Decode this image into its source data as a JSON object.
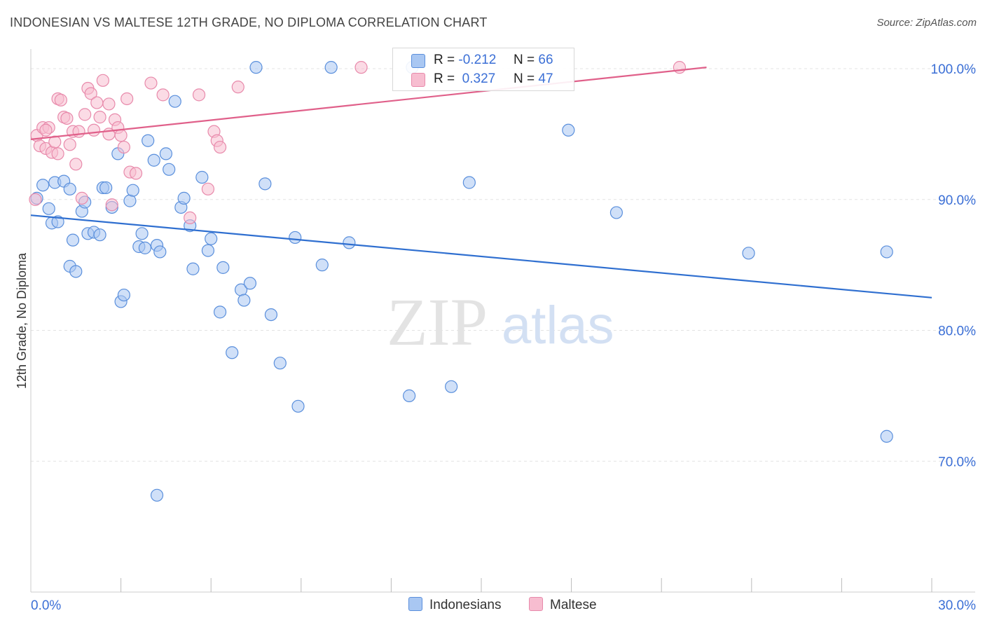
{
  "header": {
    "title": "INDONESIAN VS MALTESE 12TH GRADE, NO DIPLOMA CORRELATION CHART",
    "source": "Source: ZipAtlas.com"
  },
  "legend": {
    "r_label": "R =",
    "n_label": "N =",
    "series": [
      {
        "r": "-0.212",
        "n": "66"
      },
      {
        "r": " 0.327",
        "n": "47"
      }
    ]
  },
  "bottom_legend": [
    "Indonesians",
    "Maltese"
  ],
  "watermark": {
    "zip": "ZIP",
    "atlas": "atlas"
  },
  "colors": {
    "blue_fill": "#a9c7f2",
    "blue_stroke": "#5a8fdc",
    "blue_line": "#2f6fd0",
    "pink_fill": "#f7bdd0",
    "pink_stroke": "#e88aab",
    "pink_line": "#e0608a",
    "grid": "#e3e3e3",
    "tick_label": "#3b6fd6"
  },
  "chart_data": {
    "type": "scatter",
    "title": "INDONESIAN VS MALTESE 12TH GRADE, NO DIPLOMA CORRELATION CHART",
    "xlabel": "",
    "ylabel": "12th Grade, No Diploma",
    "xlim": [
      0,
      30
    ],
    "ylim": [
      60,
      101.5
    ],
    "x_ticks": [
      "0.0%",
      "30.0%"
    ],
    "y_ticks": [
      {
        "value": 100,
        "label": "100.0%"
      },
      {
        "value": 90,
        "label": "90.0%"
      },
      {
        "value": 80,
        "label": "80.0%"
      },
      {
        "value": 70,
        "label": "70.0%"
      }
    ],
    "grid": true,
    "legend_position": "top-center",
    "series": [
      {
        "name": "Indonesians",
        "color": "#5a8fdc",
        "points": [
          [
            0.2,
            90.1
          ],
          [
            0.4,
            91.1
          ],
          [
            0.6,
            89.3
          ],
          [
            0.8,
            91.3
          ],
          [
            0.7,
            88.2
          ],
          [
            0.9,
            88.3
          ],
          [
            1.1,
            91.4
          ],
          [
            1.3,
            84.9
          ],
          [
            1.4,
            86.9
          ],
          [
            1.5,
            84.5
          ],
          [
            1.7,
            89.1
          ],
          [
            1.8,
            89.8
          ],
          [
            1.9,
            87.4
          ],
          [
            2.1,
            87.5
          ],
          [
            2.3,
            87.3
          ],
          [
            2.4,
            90.9
          ],
          [
            2.5,
            90.9
          ],
          [
            2.7,
            89.4
          ],
          [
            2.9,
            93.5
          ],
          [
            3.0,
            82.2
          ],
          [
            3.1,
            82.7
          ],
          [
            3.3,
            89.9
          ],
          [
            3.4,
            90.7
          ],
          [
            3.6,
            86.4
          ],
          [
            3.7,
            87.4
          ],
          [
            3.8,
            86.3
          ],
          [
            3.9,
            94.5
          ],
          [
            4.1,
            93.0
          ],
          [
            4.2,
            86.5
          ],
          [
            4.3,
            86.0
          ],
          [
            4.5,
            93.5
          ],
          [
            4.6,
            92.3
          ],
          [
            4.8,
            97.5
          ],
          [
            5.0,
            89.4
          ],
          [
            5.1,
            90.1
          ],
          [
            5.3,
            88.0
          ],
          [
            5.4,
            84.7
          ],
          [
            5.7,
            91.7
          ],
          [
            5.9,
            86.1
          ],
          [
            6.0,
            87.0
          ],
          [
            6.3,
            81.4
          ],
          [
            6.4,
            84.8
          ],
          [
            6.7,
            78.3
          ],
          [
            7.0,
            83.1
          ],
          [
            7.1,
            82.3
          ],
          [
            7.3,
            83.6
          ],
          [
            7.5,
            100.1
          ],
          [
            7.8,
            91.2
          ],
          [
            8.0,
            81.2
          ],
          [
            8.3,
            77.5
          ],
          [
            8.8,
            87.1
          ],
          [
            8.9,
            74.2
          ],
          [
            9.7,
            85.0
          ],
          [
            10.0,
            100.1
          ],
          [
            10.6,
            86.7
          ],
          [
            12.6,
            75.0
          ],
          [
            14.0,
            75.7
          ],
          [
            14.6,
            91.3
          ],
          [
            17.9,
            95.3
          ],
          [
            19.5,
            89.0
          ],
          [
            23.9,
            85.9
          ],
          [
            28.5,
            86.0
          ],
          [
            28.5,
            71.9
          ],
          [
            4.2,
            67.4
          ],
          [
            12.7,
            100.1
          ],
          [
            1.3,
            90.8
          ]
        ],
        "trend": {
          "x": [
            0,
            30
          ],
          "y": [
            88.8,
            82.5
          ]
        }
      },
      {
        "name": "Maltese",
        "color": "#e88aab",
        "points": [
          [
            0.2,
            94.9
          ],
          [
            0.3,
            94.1
          ],
          [
            0.4,
            95.5
          ],
          [
            0.5,
            93.9
          ],
          [
            0.6,
            95.5
          ],
          [
            0.7,
            93.6
          ],
          [
            0.8,
            94.4
          ],
          [
            0.9,
            97.7
          ],
          [
            1.0,
            97.6
          ],
          [
            1.1,
            96.3
          ],
          [
            1.2,
            96.2
          ],
          [
            1.3,
            94.2
          ],
          [
            1.4,
            95.2
          ],
          [
            1.5,
            92.7
          ],
          [
            1.7,
            90.1
          ],
          [
            1.8,
            96.5
          ],
          [
            1.9,
            98.5
          ],
          [
            2.0,
            98.1
          ],
          [
            2.1,
            95.3
          ],
          [
            2.2,
            97.4
          ],
          [
            2.3,
            96.3
          ],
          [
            2.4,
            99.1
          ],
          [
            2.6,
            95.0
          ],
          [
            2.7,
            89.6
          ],
          [
            2.8,
            96.1
          ],
          [
            2.9,
            95.5
          ],
          [
            3.0,
            94.9
          ],
          [
            3.1,
            94.0
          ],
          [
            3.2,
            97.7
          ],
          [
            3.3,
            92.1
          ],
          [
            3.5,
            92.0
          ],
          [
            4.0,
            98.9
          ],
          [
            4.4,
            98.0
          ],
          [
            5.3,
            88.6
          ],
          [
            5.6,
            98.0
          ],
          [
            5.9,
            90.8
          ],
          [
            6.1,
            95.2
          ],
          [
            6.2,
            94.5
          ],
          [
            6.3,
            94.0
          ],
          [
            6.9,
            98.6
          ],
          [
            11.0,
            100.1
          ],
          [
            21.6,
            100.1
          ],
          [
            0.15,
            90.0
          ],
          [
            0.5,
            95.3
          ],
          [
            1.6,
            95.2
          ],
          [
            2.6,
            97.3
          ],
          [
            0.9,
            93.5
          ]
        ],
        "trend": {
          "x": [
            0,
            22.5
          ],
          "y": [
            94.6,
            100.1
          ]
        }
      }
    ]
  }
}
